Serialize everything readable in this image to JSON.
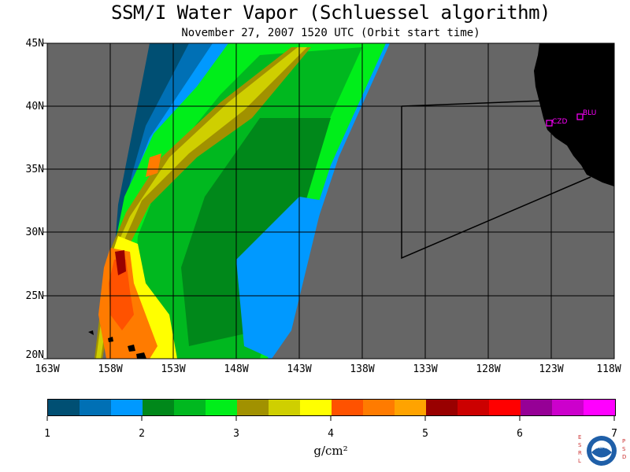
{
  "title": "SSM/I Water Vapor (Schluessel algorithm)",
  "subtitle": "November 27, 2007  1520 UTC  (Orbit start time)",
  "map": {
    "lat_labels": [
      "45N",
      "40N",
      "35N",
      "30N",
      "25N",
      "20N"
    ],
    "lon_labels": [
      "163W",
      "158W",
      "153W",
      "148W",
      "143W",
      "138W",
      "133W",
      "128W",
      "123W",
      "118W"
    ],
    "stations": [
      {
        "code": "CZD",
        "color": "#ff00ff"
      },
      {
        "code": "BLU",
        "color": "#ff00ff"
      }
    ],
    "no_data_color": "#666666",
    "land_color": "#000000"
  },
  "colorbar": {
    "ticks": [
      "1",
      "2",
      "3",
      "4",
      "5",
      "6",
      "7"
    ],
    "unit": "g/cm²",
    "colors": [
      "#004f73",
      "#0070b5",
      "#0099ff",
      "#00881a",
      "#00b81f",
      "#00ee1a",
      "#a19100",
      "#cfcf00",
      "#ffff00",
      "#ff5200",
      "#ff7b00",
      "#ffa300",
      "#990000",
      "#cc0000",
      "#ff0000",
      "#960096",
      "#cc00cc",
      "#ff00ff"
    ]
  },
  "logo": {
    "left_letters": "ESRL",
    "right_letters": "PSD",
    "emblem_text": "NOAA",
    "colors": {
      "letters": "#cc3333",
      "ring": "#1f5fa8",
      "inner": "#ffffff"
    }
  }
}
